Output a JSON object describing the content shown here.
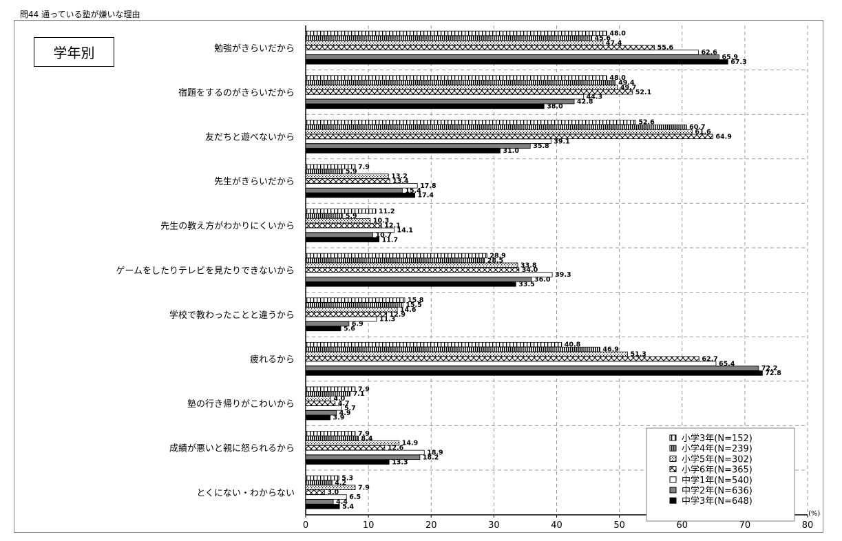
{
  "page": {
    "title": "問44 通っている塾が嫌いな理由",
    "badge": "学年別"
  },
  "chart_data": {
    "type": "bar",
    "orientation": "horizontal",
    "title": "問44 通っている塾が嫌いな理由",
    "xlabel": "",
    "ylabel": "",
    "unit_label": "(%)",
    "xlim": [
      0,
      80
    ],
    "x_ticks": [
      0,
      10,
      20,
      30,
      40,
      50,
      60,
      70,
      80
    ],
    "grid": true,
    "legend_position": "bottom-right",
    "categories": [
      "勉強がきらいだから",
      "宿題をするのがきらいだから",
      "友だちと遊べないから",
      "先生がきらいだから",
      "先生の教え方がわかりにくいから",
      "ゲームをしたりテレビを見たりできないから",
      "学校で教わったことと違うから",
      "疲れるから",
      "塾の行き帰りがこわいから",
      "成績が悪いと親に怒られるから",
      "とくにない・わからない"
    ],
    "series": [
      {
        "name": "小学3年(N=152)",
        "pattern": "vertical-sparse",
        "values": [
          48.0,
          48.0,
          52.6,
          7.9,
          11.2,
          28.9,
          15.8,
          40.8,
          7.9,
          7.9,
          5.3
        ]
      },
      {
        "name": "小学4年(N=239)",
        "pattern": "vertical-dense",
        "values": [
          45.6,
          49.4,
          60.7,
          5.9,
          5.9,
          28.5,
          15.5,
          46.9,
          7.1,
          8.4,
          4.2
        ]
      },
      {
        "name": "小学5年(N=302)",
        "pattern": "dots",
        "values": [
          47.4,
          49.7,
          61.6,
          13.2,
          10.3,
          33.8,
          14.6,
          51.3,
          4.0,
          14.9,
          7.9
        ]
      },
      {
        "name": "小学6年(N=365)",
        "pattern": "cross",
        "values": [
          55.6,
          52.1,
          64.9,
          13.4,
          12.1,
          34.0,
          12.9,
          62.7,
          4.7,
          12.6,
          3.0
        ]
      },
      {
        "name": "中学1年(N=540)",
        "pattern": "white",
        "values": [
          62.6,
          44.3,
          39.1,
          17.8,
          14.1,
          39.3,
          11.3,
          65.4,
          5.7,
          18.9,
          6.5
        ]
      },
      {
        "name": "中学2年(N=636)",
        "pattern": "gray",
        "values": [
          65.9,
          42.8,
          35.8,
          15.4,
          10.7,
          36.0,
          6.9,
          72.2,
          4.9,
          18.2,
          4.4
        ]
      },
      {
        "name": "中学3年(N=648)",
        "pattern": "black",
        "values": [
          67.3,
          38.0,
          31.0,
          17.4,
          11.7,
          33.5,
          5.6,
          72.8,
          3.9,
          13.3,
          5.4
        ]
      }
    ],
    "value_labels": [
      [
        "48.0",
        "45.6",
        "47.4",
        "55.6",
        "62.6",
        "65.9",
        "67.3"
      ],
      [
        "48.0",
        "49.4",
        "49.7",
        "52.1",
        "44.3",
        "42.8",
        "38.0"
      ],
      [
        "52.6",
        "60.7",
        "61.6",
        "64.9",
        "39.1",
        "35.8",
        "31.0"
      ],
      [
        "7.9",
        "5.9",
        "13.2",
        "13.4",
        "17.8",
        "15.4",
        "17.4"
      ],
      [
        "11.2",
        "5.9",
        "10.3",
        "12.1",
        "14.1",
        "10.7",
        "11.7"
      ],
      [
        "28.9",
        "28.5",
        "33.8",
        "34.0",
        "39.3",
        "36.0",
        "33.5"
      ],
      [
        "15.8",
        "15.5",
        "14.6",
        "12.9",
        "11.3",
        "6.9",
        "5.6"
      ],
      [
        "40.8",
        "46.9",
        "51.3",
        "62.7",
        "65.4",
        "72.2",
        "72.8"
      ],
      [
        "7.9",
        "7.1",
        "4.0",
        "4.7",
        "5.7",
        "4.9",
        "3.9"
      ],
      [
        "7.9",
        "8.4",
        "14.9",
        "12.6",
        "18.9",
        "18.2",
        "13.3"
      ],
      [
        "5.3",
        "4.2",
        "7.9",
        "3.0",
        "6.5",
        "4.4",
        "5.4"
      ]
    ]
  }
}
